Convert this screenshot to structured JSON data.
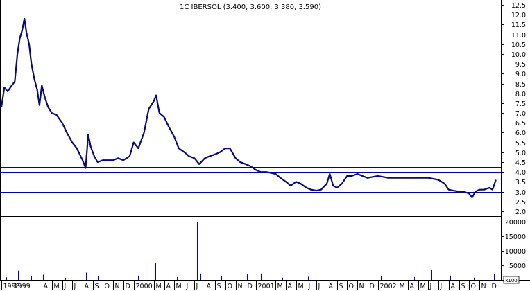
{
  "chart_data": [
    {
      "type": "line",
      "title": "1C IBERSOL (3.400, 3.600, 3.380, 3.590)",
      "xlabel": "",
      "ylabel": "",
      "x_ticks": [
        {
          "label": "1998",
          "date": "1998-12"
        },
        {
          "label": "1999",
          "date": "1999-01"
        },
        {
          "label": "A",
          "date": "1999-04"
        },
        {
          "label": "M",
          "date": "1999-05"
        },
        {
          "label": "J",
          "date": "1999-06"
        },
        {
          "label": "J",
          "date": "1999-07"
        },
        {
          "label": "A",
          "date": "1999-08"
        },
        {
          "label": "S",
          "date": "1999-09"
        },
        {
          "label": "O",
          "date": "1999-10"
        },
        {
          "label": "N",
          "date": "1999-11"
        },
        {
          "label": "D",
          "date": "1999-12"
        },
        {
          "label": "2000",
          "date": "2000-01"
        },
        {
          "label": "M",
          "date": "2000-03"
        },
        {
          "label": "A",
          "date": "2000-04"
        },
        {
          "label": "M",
          "date": "2000-05"
        },
        {
          "label": "J",
          "date": "2000-06"
        },
        {
          "label": "J",
          "date": "2000-07"
        },
        {
          "label": "A",
          "date": "2000-08"
        },
        {
          "label": "S",
          "date": "2000-09"
        },
        {
          "label": "O",
          "date": "2000-10"
        },
        {
          "label": "N",
          "date": "2000-11"
        },
        {
          "label": "D",
          "date": "2000-12"
        },
        {
          "label": "2001",
          "date": "2001-01"
        },
        {
          "label": "M",
          "date": "2001-03"
        },
        {
          "label": "A",
          "date": "2001-04"
        },
        {
          "label": "M",
          "date": "2001-05"
        },
        {
          "label": "J",
          "date": "2001-06"
        },
        {
          "label": "J",
          "date": "2001-07"
        },
        {
          "label": "A",
          "date": "2001-08"
        },
        {
          "label": "S",
          "date": "2001-09"
        },
        {
          "label": "O",
          "date": "2001-10"
        },
        {
          "label": "N",
          "date": "2001-11"
        },
        {
          "label": "D",
          "date": "2001-12"
        },
        {
          "label": "2002",
          "date": "2002-01"
        },
        {
          "label": "M",
          "date": "2002-03"
        },
        {
          "label": "A",
          "date": "2002-04"
        },
        {
          "label": "M",
          "date": "2002-05"
        },
        {
          "label": "J",
          "date": "2002-06"
        },
        {
          "label": "J",
          "date": "2002-07"
        },
        {
          "label": "A",
          "date": "2002-08"
        },
        {
          "label": "S",
          "date": "2002-09"
        },
        {
          "label": "O",
          "date": "2002-10"
        },
        {
          "label": "N",
          "date": "2002-11"
        },
        {
          "label": "D",
          "date": "2002-12"
        }
      ],
      "y_ticks": [
        2.0,
        2.5,
        3.0,
        3.5,
        4.0,
        4.5,
        5.0,
        5.5,
        6.0,
        6.5,
        7.0,
        7.5,
        8.0,
        8.5,
        9.0,
        9.5,
        10.0,
        10.5,
        11.0,
        11.5,
        12.0,
        12.5
      ],
      "ylim": [
        1.75,
        12.75
      ],
      "xlim": [
        "1998-12-01",
        "2002-12-31"
      ],
      "horizontal_lines": [
        4.25,
        4.0,
        3.0
      ],
      "grid": false,
      "series": [
        {
          "values": [
            [
              "1998-12-01",
              7.3
            ],
            [
              "1998-12-10",
              8.3
            ],
            [
              "1998-12-20",
              8.1
            ],
            [
              "1999-01-01",
              8.4
            ],
            [
              "1999-01-10",
              8.6
            ],
            [
              "1999-01-18",
              10.0
            ],
            [
              "1999-01-25",
              10.8
            ],
            [
              "1999-02-01",
              11.2
            ],
            [
              "1999-02-08",
              11.8
            ],
            [
              "1999-02-14",
              11.1
            ],
            [
              "1999-02-22",
              10.5
            ],
            [
              "1999-03-01",
              9.5
            ],
            [
              "1999-03-10",
              8.7
            ],
            [
              "1999-03-18",
              8.2
            ],
            [
              "1999-03-25",
              7.4
            ],
            [
              "1999-04-01",
              8.4
            ],
            [
              "1999-04-10",
              7.8
            ],
            [
              "1999-04-20",
              7.3
            ],
            [
              "1999-05-01",
              7.0
            ],
            [
              "1999-05-15",
              6.9
            ],
            [
              "1999-06-01",
              6.5
            ],
            [
              "1999-06-15",
              6.0
            ],
            [
              "1999-07-01",
              5.5
            ],
            [
              "1999-07-15",
              5.2
            ],
            [
              "1999-08-01",
              4.6
            ],
            [
              "1999-08-10",
              4.2
            ],
            [
              "1999-08-18",
              5.9
            ],
            [
              "1999-08-25",
              5.3
            ],
            [
              "1999-09-05",
              4.8
            ],
            [
              "1999-09-15",
              4.5
            ],
            [
              "1999-10-01",
              4.6
            ],
            [
              "1999-10-15",
              4.6
            ],
            [
              "1999-11-01",
              4.6
            ],
            [
              "1999-11-15",
              4.7
            ],
            [
              "1999-12-01",
              4.6
            ],
            [
              "1999-12-20",
              4.8
            ],
            [
              "2000-01-01",
              5.5
            ],
            [
              "2000-01-15",
              5.2
            ],
            [
              "2000-02-01",
              6.0
            ],
            [
              "2000-02-15",
              7.2
            ],
            [
              "2000-03-01",
              7.6
            ],
            [
              "2000-03-08",
              7.9
            ],
            [
              "2000-03-18",
              7.0
            ],
            [
              "2000-04-01",
              6.8
            ],
            [
              "2000-04-15",
              6.3
            ],
            [
              "2000-05-01",
              5.8
            ],
            [
              "2000-05-15",
              5.2
            ],
            [
              "2000-06-01",
              5.0
            ],
            [
              "2000-06-15",
              4.8
            ],
            [
              "2000-07-01",
              4.7
            ],
            [
              "2000-07-15",
              4.4
            ],
            [
              "2000-08-01",
              4.7
            ],
            [
              "2000-08-15",
              4.8
            ],
            [
              "2000-09-01",
              4.9
            ],
            [
              "2000-09-15",
              5.0
            ],
            [
              "2000-10-01",
              5.2
            ],
            [
              "2000-10-15",
              5.2
            ],
            [
              "2000-11-01",
              4.7
            ],
            [
              "2000-11-15",
              4.5
            ],
            [
              "2000-12-01",
              4.4
            ],
            [
              "2000-12-15",
              4.3
            ],
            [
              "2001-01-01",
              4.1
            ],
            [
              "2001-01-15",
              4.0
            ],
            [
              "2001-02-01",
              4.0
            ],
            [
              "2001-03-01",
              3.9
            ],
            [
              "2001-03-15",
              3.7
            ],
            [
              "2001-04-01",
              3.5
            ],
            [
              "2001-04-15",
              3.3
            ],
            [
              "2001-05-01",
              3.5
            ],
            [
              "2001-05-15",
              3.4
            ],
            [
              "2001-06-01",
              3.2
            ],
            [
              "2001-06-15",
              3.1
            ],
            [
              "2001-07-01",
              3.05
            ],
            [
              "2001-07-15",
              3.1
            ],
            [
              "2001-08-01",
              3.4
            ],
            [
              "2001-08-10",
              3.9
            ],
            [
              "2001-08-20",
              3.3
            ],
            [
              "2001-09-01",
              3.2
            ],
            [
              "2001-09-15",
              3.4
            ],
            [
              "2001-10-01",
              3.8
            ],
            [
              "2001-10-15",
              3.8
            ],
            [
              "2001-11-01",
              3.9
            ],
            [
              "2001-11-15",
              3.8
            ],
            [
              "2001-12-01",
              3.7
            ],
            [
              "2002-01-01",
              3.8
            ],
            [
              "2002-02-01",
              3.7
            ],
            [
              "2002-03-01",
              3.7
            ],
            [
              "2002-04-01",
              3.7
            ],
            [
              "2002-05-01",
              3.7
            ],
            [
              "2002-06-01",
              3.7
            ],
            [
              "2002-07-01",
              3.6
            ],
            [
              "2002-07-20",
              3.4
            ],
            [
              "2002-08-01",
              3.1
            ],
            [
              "2002-08-15",
              3.05
            ],
            [
              "2002-09-01",
              3.0
            ],
            [
              "2002-09-15",
              3.0
            ],
            [
              "2002-10-01",
              2.9
            ],
            [
              "2002-10-10",
              2.7
            ],
            [
              "2002-10-20",
              3.0
            ],
            [
              "2002-11-01",
              3.1
            ],
            [
              "2002-11-15",
              3.1
            ],
            [
              "2002-12-01",
              3.2
            ],
            [
              "2002-12-10",
              3.1
            ],
            [
              "2002-12-20",
              3.59
            ]
          ],
          "color": "#0000cc"
        }
      ]
    },
    {
      "type": "bar",
      "title": "",
      "y_ticks": [
        5000,
        10000,
        15000,
        20000
      ],
      "ylim": [
        0,
        22000
      ],
      "axis_multiplier_label": "x100",
      "series": [
        {
          "values": [
            [
              "1998-12-15",
              900
            ],
            [
              "1999-01-20",
              3200
            ],
            [
              "1999-02-05",
              2100
            ],
            [
              "1999-03-01",
              1200
            ],
            [
              "1999-04-05",
              1800
            ],
            [
              "1999-06-10",
              700
            ],
            [
              "1999-08-12",
              2500
            ],
            [
              "1999-08-20",
              4100
            ],
            [
              "1999-08-28",
              8200
            ],
            [
              "1999-09-15",
              1400
            ],
            [
              "1999-11-10",
              900
            ],
            [
              "2000-01-15",
              1500
            ],
            [
              "2000-02-20",
              3800
            ],
            [
              "2000-03-05",
              6000
            ],
            [
              "2000-03-10",
              2700
            ],
            [
              "2000-05-10",
              1000
            ],
            [
              "2000-07-08",
              20000
            ],
            [
              "2000-07-20",
              2200
            ],
            [
              "2000-09-20",
              1300
            ],
            [
              "2000-12-05",
              1900
            ],
            [
              "2001-01-03",
              13500
            ],
            [
              "2001-01-15",
              2200
            ],
            [
              "2001-03-20",
              800
            ],
            [
              "2001-06-05",
              1100
            ],
            [
              "2001-08-10",
              2400
            ],
            [
              "2001-09-12",
              1300
            ],
            [
              "2001-11-05",
              900
            ],
            [
              "2002-01-10",
              1200
            ],
            [
              "2002-04-20",
              1000
            ],
            [
              "2002-06-10",
              3600
            ],
            [
              "2002-08-05",
              1500
            ],
            [
              "2002-10-15",
              800
            ],
            [
              "2002-12-15",
              2100
            ]
          ],
          "color": "#0000cc"
        }
      ]
    }
  ]
}
